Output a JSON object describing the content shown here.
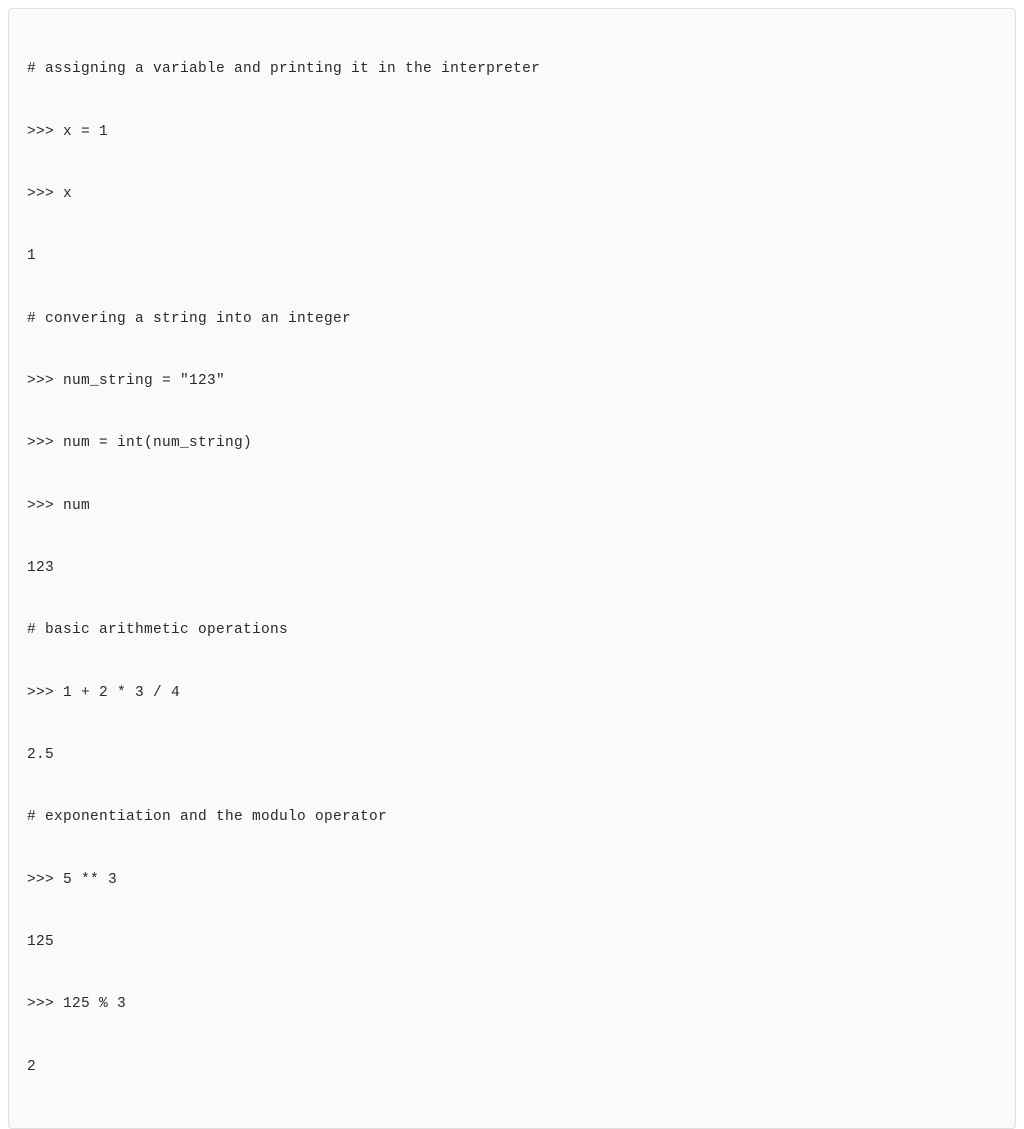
{
  "code_block": {
    "background_color": "#fafafa",
    "border_color": "#e0e0e0",
    "text_color": "#2a2a2a",
    "font_family": "monospace",
    "font_size": 14.5,
    "line_height": 2.15,
    "lines": [
      "# assigning a variable and printing it in the interpreter",
      ">>> x = 1",
      ">>> x",
      "1",
      "# convering a string into an integer",
      ">>> num_string = \"123\"",
      ">>> num = int(num_string)",
      ">>> num",
      "123",
      "# basic arithmetic operations",
      ">>> 1 + 2 * 3 / 4",
      "2.5",
      "# exponentiation and the modulo operator",
      ">>> 5 ** 3",
      "125",
      ">>> 125 % 3",
      "2"
    ]
  }
}
